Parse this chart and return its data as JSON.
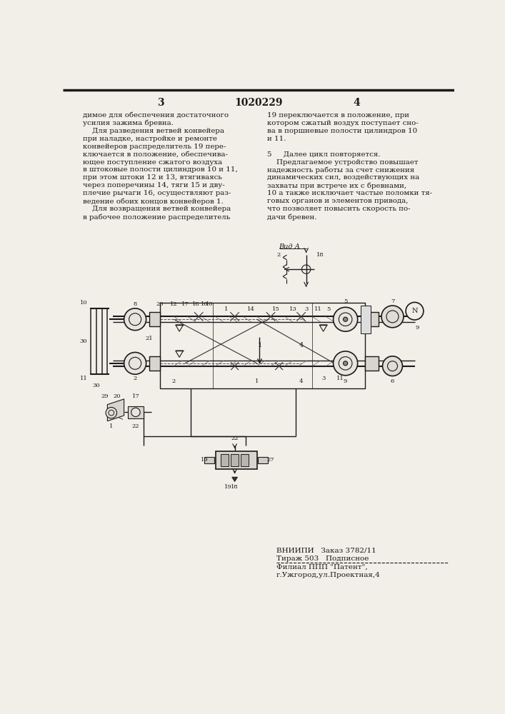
{
  "page_color": "#f2efe9",
  "text_color": "#1a1a1a",
  "line_color": "#1a1a1a",
  "header_number": "1020229",
  "page_left": "3",
  "page_right": "4",
  "left_col_lines": [
    "димое для обеспечения достаточного",
    "усилия зажима бревна.",
    "    Для разведения ветвей конвейера",
    "при наладке, настройке и ремонте",
    "конвейеров распределитель 19 пере-",
    "ключается в положение, обеспечива-",
    "ющее поступление сжатого воздуха",
    "в штоковые полости цилиндров 10 и 11,",
    "при этом штоки 12 и 13, втягиваясь",
    "через поперечины 14, тяги 15 и дву-",
    "плечие рычаги 16, осуществляют раз-",
    "ведение обоих концов конвейеров 1.",
    "    Для возвращения ветвей конвейера",
    "в рабочее положение распределитель"
  ],
  "right_col_lines": [
    "19 переключается в положение, при",
    "котором сжатый воздух поступает сно-",
    "ва в поршневые полости цилиндров 10",
    "и 11.",
    "",
    "5     Далее цикл повторяется.",
    "    Предлагаемое устройство повышает",
    "надежность работы за счет снижения",
    "динамических сил, воздействующих на",
    "захваты при встрече их с бревнами,",
    "10 а также исключает частые поломки тя-",
    "говых органов и элементов привода,",
    "что позволяет повысить скорость по-",
    "дачи бревен."
  ],
  "bottom_text": [
    "ВНИИПИ   Заказ 3782/11",
    "Тираж 503   Подписное",
    "Филиал ППП \"Патент\",",
    "г.Ужгород,ул.Проектная,4"
  ]
}
